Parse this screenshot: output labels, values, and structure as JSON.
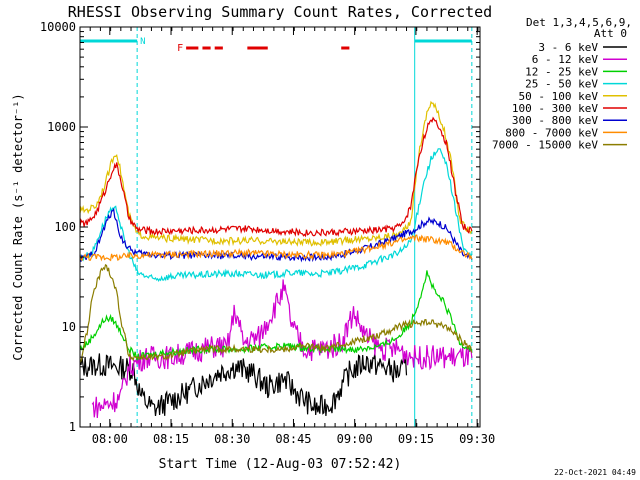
{
  "chart_data": {
    "type": "line",
    "title": "RHESSI Observing Summary Count Rates, Corrected",
    "xlabel": "Start Time (12-Aug-03 07:52:42)",
    "ylabel": "Corrected Count Rate (s⁻¹ detector⁻¹)",
    "x_unit": "minutes after 07:52:42",
    "xlim": [
      0,
      98
    ],
    "ylim": [
      1,
      10000
    ],
    "yscale": "log",
    "xticks": [
      {
        "t": 7.3,
        "label": "08:00"
      },
      {
        "t": 22.3,
        "label": "08:15"
      },
      {
        "t": 37.3,
        "label": "08:30"
      },
      {
        "t": 52.3,
        "label": "08:45"
      },
      {
        "t": 67.3,
        "label": "09:00"
      },
      {
        "t": 82.3,
        "label": "09:15"
      },
      {
        "t": 97.3,
        "label": "09:30"
      }
    ],
    "yticks": [
      {
        "v": 1,
        "label": "1"
      },
      {
        "v": 10,
        "label": "10"
      },
      {
        "v": 100,
        "label": "100"
      },
      {
        "v": 1000,
        "label": "1000"
      },
      {
        "v": 10000,
        "label": "10000"
      }
    ],
    "legend_header": [
      "Det 1,3,4,5,6,9,",
      "Att 0"
    ],
    "night_bars": [
      {
        "label": "N",
        "t0": 0,
        "t1": 14
      },
      {
        "label": "",
        "t0": 82,
        "t1": 96
      }
    ],
    "flare_label": "F",
    "flare_segments": [
      [
        26,
        29
      ],
      [
        30,
        32
      ],
      [
        33,
        35
      ],
      [
        41,
        46
      ],
      [
        64,
        66
      ]
    ],
    "night_boundaries": [
      {
        "t": 14,
        "style": "dashed"
      },
      {
        "t": 82,
        "style": "solid"
      },
      {
        "t": 96,
        "style": "dashed"
      }
    ],
    "series": [
      {
        "name": "3 - 6 keV",
        "color": "#000000",
        "points": [
          [
            0,
            4
          ],
          [
            5,
            4.2
          ],
          [
            9,
            4
          ],
          [
            13,
            3.8
          ],
          [
            15,
            2
          ],
          [
            18,
            1.5
          ],
          [
            22,
            1.8
          ],
          [
            26,
            2.2
          ],
          [
            30,
            2.8
          ],
          [
            34,
            3.5
          ],
          [
            38,
            4
          ],
          [
            42,
            3.5
          ],
          [
            46,
            2.5
          ],
          [
            50,
            3
          ],
          [
            54,
            2
          ],
          [
            58,
            1.5
          ],
          [
            62,
            1.8
          ],
          [
            66,
            3.5
          ],
          [
            70,
            4.5
          ],
          [
            74,
            4
          ],
          [
            78,
            3.5
          ],
          [
            80,
            4
          ]
        ]
      },
      {
        "name": "6 - 12 keV",
        "color": "#d000d0",
        "points": [
          [
            3,
            1.6
          ],
          [
            5,
            1.6
          ],
          [
            8,
            1.8
          ],
          [
            10,
            2
          ],
          [
            12,
            4
          ],
          [
            16,
            5
          ],
          [
            22,
            5
          ],
          [
            30,
            6
          ],
          [
            34,
            6.5
          ],
          [
            36,
            6
          ],
          [
            38,
            15
          ],
          [
            40,
            7
          ],
          [
            44,
            8
          ],
          [
            47,
            14
          ],
          [
            50,
            24
          ],
          [
            52,
            10
          ],
          [
            55,
            6
          ],
          [
            60,
            6
          ],
          [
            64,
            7
          ],
          [
            67,
            14
          ],
          [
            70,
            8
          ],
          [
            74,
            6
          ],
          [
            78,
            6
          ],
          [
            82,
            5
          ],
          [
            86,
            5
          ],
          [
            90,
            5
          ],
          [
            94,
            5
          ],
          [
            96,
            5
          ]
        ]
      },
      {
        "name": "12 - 25 keV",
        "color": "#00d000",
        "points": [
          [
            0,
            6
          ],
          [
            2,
            7
          ],
          [
            4,
            9
          ],
          [
            6,
            12
          ],
          [
            8,
            12
          ],
          [
            10,
            9
          ],
          [
            12,
            6
          ],
          [
            14,
            5
          ],
          [
            20,
            5.5
          ],
          [
            30,
            6
          ],
          [
            40,
            6
          ],
          [
            50,
            6.5
          ],
          [
            60,
            6
          ],
          [
            68,
            6
          ],
          [
            74,
            6.5
          ],
          [
            78,
            8
          ],
          [
            81,
            11
          ],
          [
            83,
            18
          ],
          [
            85,
            35
          ],
          [
            87,
            22
          ],
          [
            89,
            18
          ],
          [
            91,
            12
          ],
          [
            93,
            7
          ],
          [
            96,
            6
          ]
        ]
      },
      {
        "name": "25 - 50 keV",
        "color": "#00d8d8",
        "points": [
          [
            0,
            48
          ],
          [
            3,
            55
          ],
          [
            5,
            90
          ],
          [
            7,
            140
          ],
          [
            9,
            150
          ],
          [
            11,
            70
          ],
          [
            14,
            35
          ],
          [
            18,
            30
          ],
          [
            22,
            32
          ],
          [
            28,
            33
          ],
          [
            34,
            34
          ],
          [
            40,
            34
          ],
          [
            46,
            33
          ],
          [
            52,
            35
          ],
          [
            58,
            34
          ],
          [
            62,
            35
          ],
          [
            66,
            38
          ],
          [
            70,
            42
          ],
          [
            74,
            48
          ],
          [
            78,
            55
          ],
          [
            81,
            70
          ],
          [
            82,
            100
          ],
          [
            84,
            260
          ],
          [
            86,
            480
          ],
          [
            88,
            600
          ],
          [
            90,
            400
          ],
          [
            92,
            150
          ],
          [
            94,
            60
          ],
          [
            96,
            50
          ]
        ]
      },
      {
        "name": "50 - 100 keV",
        "color": "#e0c000",
        "points": [
          [
            0,
            145
          ],
          [
            2,
            150
          ],
          [
            4,
            165
          ],
          [
            6,
            260
          ],
          [
            8,
            480
          ],
          [
            9,
            560
          ],
          [
            10,
            350
          ],
          [
            12,
            130
          ],
          [
            14,
            85
          ],
          [
            18,
            78
          ],
          [
            24,
            76
          ],
          [
            30,
            74
          ],
          [
            36,
            73
          ],
          [
            42,
            73
          ],
          [
            48,
            72
          ],
          [
            54,
            70
          ],
          [
            60,
            70
          ],
          [
            66,
            74
          ],
          [
            72,
            78
          ],
          [
            76,
            82
          ],
          [
            79,
            88
          ],
          [
            81,
            110
          ],
          [
            83,
            550
          ],
          [
            85,
            1400
          ],
          [
            86,
            1800
          ],
          [
            87,
            1600
          ],
          [
            89,
            1000
          ],
          [
            91,
            450
          ],
          [
            93,
            120
          ],
          [
            95,
            95
          ],
          [
            96,
            90
          ]
        ]
      },
      {
        "name": "100 - 300 keV",
        "color": "#e00000",
        "points": [
          [
            0,
            108
          ],
          [
            2,
            110
          ],
          [
            4,
            140
          ],
          [
            6,
            220
          ],
          [
            8,
            380
          ],
          [
            9,
            410
          ],
          [
            10,
            300
          ],
          [
            12,
            120
          ],
          [
            14,
            95
          ],
          [
            18,
            90
          ],
          [
            24,
            92
          ],
          [
            30,
            93
          ],
          [
            36,
            95
          ],
          [
            42,
            96
          ],
          [
            48,
            92
          ],
          [
            54,
            88
          ],
          [
            60,
            88
          ],
          [
            66,
            90
          ],
          [
            72,
            93
          ],
          [
            76,
            96
          ],
          [
            79,
            105
          ],
          [
            81,
            160
          ],
          [
            83,
            500
          ],
          [
            85,
            1000
          ],
          [
            87,
            1200
          ],
          [
            88,
            1000
          ],
          [
            90,
            650
          ],
          [
            92,
            220
          ],
          [
            94,
            100
          ],
          [
            96,
            90
          ]
        ]
      },
      {
        "name": "300 - 800 keV",
        "color": "#0000d0",
        "points": [
          [
            0,
            48
          ],
          [
            2,
            50
          ],
          [
            4,
            60
          ],
          [
            6,
            100
          ],
          [
            8,
            150
          ],
          [
            9,
            110
          ],
          [
            10,
            80
          ],
          [
            12,
            60
          ],
          [
            14,
            55
          ],
          [
            20,
            52
          ],
          [
            30,
            52
          ],
          [
            40,
            51
          ],
          [
            50,
            50
          ],
          [
            60,
            50
          ],
          [
            66,
            55
          ],
          [
            72,
            65
          ],
          [
            78,
            80
          ],
          [
            82,
            95
          ],
          [
            85,
            115
          ],
          [
            88,
            110
          ],
          [
            90,
            95
          ],
          [
            92,
            70
          ],
          [
            94,
            52
          ],
          [
            96,
            48
          ]
        ]
      },
      {
        "name": "800 - 7000 keV",
        "color": "#ff8c00",
        "points": [
          [
            0,
            50
          ],
          [
            5,
            50
          ],
          [
            10,
            50
          ],
          [
            14,
            52
          ],
          [
            20,
            53
          ],
          [
            30,
            54
          ],
          [
            40,
            55
          ],
          [
            50,
            53
          ],
          [
            60,
            52
          ],
          [
            66,
            55
          ],
          [
            72,
            63
          ],
          [
            78,
            72
          ],
          [
            82,
            78
          ],
          [
            86,
            75
          ],
          [
            90,
            70
          ],
          [
            94,
            55
          ],
          [
            96,
            50
          ]
        ]
      },
      {
        "name": "7000 - 15000 keV",
        "color": "#8b7d00",
        "points": [
          [
            0,
            4.3
          ],
          [
            2,
            10
          ],
          [
            3,
            20
          ],
          [
            5,
            35
          ],
          [
            6,
            40
          ],
          [
            7,
            38
          ],
          [
            8,
            30
          ],
          [
            9,
            22
          ],
          [
            10,
            12
          ],
          [
            11,
            8
          ],
          [
            12,
            5
          ],
          [
            15,
            5
          ],
          [
            20,
            5
          ],
          [
            30,
            6
          ],
          [
            40,
            6
          ],
          [
            50,
            6
          ],
          [
            55,
            6.5
          ],
          [
            60,
            6
          ],
          [
            66,
            7
          ],
          [
            72,
            8
          ],
          [
            78,
            10
          ],
          [
            82,
            11
          ],
          [
            86,
            11
          ],
          [
            90,
            10
          ],
          [
            94,
            7
          ],
          [
            96,
            6
          ]
        ]
      }
    ]
  },
  "footer_date": "22-Oct-2021 04:49"
}
